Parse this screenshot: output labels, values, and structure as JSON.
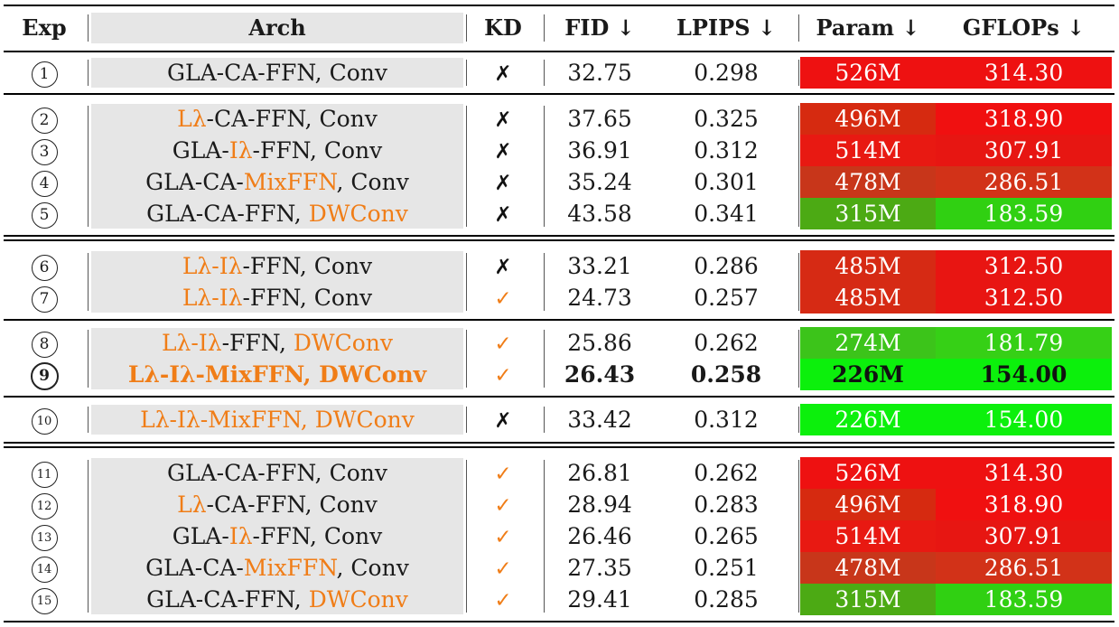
{
  "headers": {
    "exp": "Exp",
    "arch": "Arch",
    "kd": "KD",
    "fid": "FID ↓",
    "lpips": "LPIPS ↓",
    "param": "Param ↓",
    "gflops": "GFLOPs ↓"
  },
  "marks": {
    "cross": "✗",
    "check": "✓"
  },
  "colors": {
    "orange_accent": "#f07d17",
    "arch_bg": "#e6e6e6"
  },
  "rows": [
    {
      "exp": "1",
      "arch": [
        [
          "GLA-CA-FFN, Conv",
          0
        ]
      ],
      "kd": "cross",
      "fid": "32.75",
      "lpips": "0.298",
      "param": "526M",
      "gflops": "314.30",
      "param_color": "#ee1111",
      "gflops_color": "#ee1111"
    },
    {
      "exp": "2",
      "arch": [
        [
          "Lλ",
          1
        ],
        [
          "-CA-FFN, Conv",
          0
        ]
      ],
      "kd": "cross",
      "fid": "37.65",
      "lpips": "0.325",
      "param": "496M",
      "gflops": "318.90",
      "param_color": "#d62a10",
      "gflops_color": "#f01010"
    },
    {
      "exp": "3",
      "arch": [
        [
          "GLA-",
          0
        ],
        [
          "Iλ",
          1
        ],
        [
          "-FFN, Conv",
          0
        ]
      ],
      "kd": "cross",
      "fid": "36.91",
      "lpips": "0.312",
      "param": "514M",
      "gflops": "307.91",
      "param_color": "#e81912",
      "gflops_color": "#e71612"
    },
    {
      "exp": "4",
      "arch": [
        [
          "GLA-CA-",
          0
        ],
        [
          "MixFFN",
          1
        ],
        [
          ", Conv",
          0
        ]
      ],
      "kd": "cross",
      "fid": "35.24",
      "lpips": "0.301",
      "param": "478M",
      "gflops": "286.51",
      "param_color": "#c8361a",
      "gflops_color": "#d23218"
    },
    {
      "exp": "5",
      "arch": [
        [
          "GLA-CA-FFN, ",
          0
        ],
        [
          "DWConv",
          1
        ]
      ],
      "kd": "cross",
      "fid": "43.58",
      "lpips": "0.341",
      "param": "315M",
      "gflops": "183.59",
      "param_color": "#4caa14",
      "gflops_color": "#30d012"
    },
    {
      "exp": "6",
      "arch": [
        [
          "Lλ-Iλ",
          1
        ],
        [
          "-FFN, Conv",
          0
        ]
      ],
      "kd": "cross",
      "fid": "33.21",
      "lpips": "0.286",
      "param": "485M",
      "gflops": "312.50",
      "param_color": "#d62a14",
      "gflops_color": "#e81512"
    },
    {
      "exp": "7",
      "arch": [
        [
          "Lλ-Iλ",
          1
        ],
        [
          "-FFN, Conv",
          0
        ]
      ],
      "kd": "check",
      "fid": "24.73",
      "lpips": "0.257",
      "param": "485M",
      "gflops": "312.50",
      "param_color": "#d62a14",
      "gflops_color": "#e81512"
    },
    {
      "exp": "8",
      "arch": [
        [
          "Lλ-Iλ",
          1
        ],
        [
          "-FFN, ",
          0
        ],
        [
          "DWConv",
          1
        ]
      ],
      "kd": "check",
      "fid": "25.86",
      "lpips": "0.262",
      "param": "274M",
      "gflops": "181.79",
      "param_color": "#3cc41a",
      "gflops_color": "#36d016"
    },
    {
      "exp": "9",
      "arch": [
        [
          "Lλ-Iλ-MixFFN, DWConv",
          1
        ]
      ],
      "kd": "check",
      "fid": "26.43",
      "lpips": "0.258",
      "param": "226M",
      "gflops": "154.00",
      "param_color": "#0cf00c",
      "gflops_color": "#0cf00c",
      "bold": true
    },
    {
      "exp": "10",
      "arch": [
        [
          "Lλ-Iλ-MixFFN, DWConv",
          1
        ]
      ],
      "kd": "cross",
      "fid": "33.42",
      "lpips": "0.312",
      "param": "226M",
      "gflops": "154.00",
      "param_color": "#0cf00c",
      "gflops_color": "#0cf00c"
    },
    {
      "exp": "11",
      "arch": [
        [
          "GLA-CA-FFN, Conv",
          0
        ]
      ],
      "kd": "check",
      "fid": "26.81",
      "lpips": "0.262",
      "param": "526M",
      "gflops": "314.30",
      "param_color": "#ee1111",
      "gflops_color": "#ee1111"
    },
    {
      "exp": "12",
      "arch": [
        [
          "Lλ",
          1
        ],
        [
          "-CA-FFN, Conv",
          0
        ]
      ],
      "kd": "check",
      "fid": "28.94",
      "lpips": "0.283",
      "param": "496M",
      "gflops": "318.90",
      "param_color": "#d62a10",
      "gflops_color": "#f01010"
    },
    {
      "exp": "13",
      "arch": [
        [
          "GLA-",
          0
        ],
        [
          "Iλ",
          1
        ],
        [
          "-FFN, Conv",
          0
        ]
      ],
      "kd": "check",
      "fid": "26.46",
      "lpips": "0.265",
      "param": "514M",
      "gflops": "307.91",
      "param_color": "#e81912",
      "gflops_color": "#e71612"
    },
    {
      "exp": "14",
      "arch": [
        [
          "GLA-CA-",
          0
        ],
        [
          "MixFFN",
          1
        ],
        [
          ", Conv",
          0
        ]
      ],
      "kd": "check",
      "fid": "27.35",
      "lpips": "0.251",
      "param": "478M",
      "gflops": "286.51",
      "param_color": "#c8361a",
      "gflops_color": "#d23218"
    },
    {
      "exp": "15",
      "arch": [
        [
          "GLA-CA-FFN, ",
          0
        ],
        [
          "DWConv",
          1
        ]
      ],
      "kd": "check",
      "fid": "29.41",
      "lpips": "0.285",
      "param": "315M",
      "gflops": "183.59",
      "param_color": "#4caa14",
      "gflops_color": "#30d012"
    }
  ]
}
